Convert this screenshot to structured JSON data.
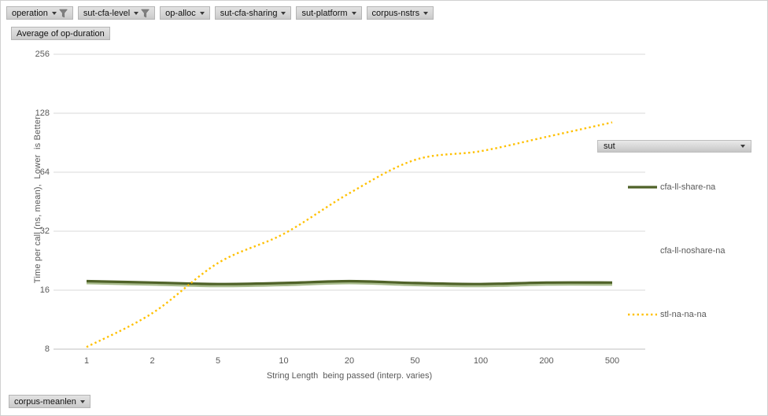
{
  "field_buttons": {
    "top": [
      {
        "label": "operation",
        "filtered": true
      },
      {
        "label": "sut-cfa-level",
        "filtered": true
      },
      {
        "label": "op-alloc",
        "filtered": false
      },
      {
        "label": "sut-cfa-sharing",
        "filtered": false
      },
      {
        "label": "sut-platform",
        "filtered": false
      },
      {
        "label": "corpus-nstrs",
        "filtered": false
      }
    ],
    "values_button": "Average of op-duration",
    "legend_field_button": "sut",
    "bottom_axis_button": "corpus-meanlen"
  },
  "chart_data": {
    "type": "line",
    "title": "",
    "x_axis": {
      "title": "String Length  being passed (interp. varies)",
      "categories": [
        "1",
        "2",
        "5",
        "10",
        "20",
        "50",
        "100",
        "200",
        "500"
      ],
      "scale": "category-log-spaced"
    },
    "y_axis": {
      "title": "Time per call (ns, mean),  Lower  is Better",
      "ticks": [
        256,
        128,
        64,
        32,
        16,
        8
      ],
      "range": [
        8,
        256
      ],
      "scale": "log2"
    },
    "grid": true,
    "legend_position": "right-overlay",
    "series": [
      {
        "name": "cfa-ll-share-na",
        "color": "#4f6228",
        "style": "solid",
        "values": [
          17.8,
          17.5,
          17.2,
          17.4,
          17.8,
          17.4,
          17.2,
          17.5,
          17.5
        ]
      },
      {
        "name": "cfa-ll-noshare-na",
        "color": "#a9bc8d",
        "style": "solid",
        "values": [
          17.4,
          17.1,
          16.8,
          17.0,
          17.4,
          17.0,
          16.8,
          17.1,
          17.1
        ]
      },
      {
        "name": "stl-na-na-na",
        "color": "#ffc000",
        "style": "dotted",
        "values": [
          8.2,
          12.2,
          22,
          31,
          50,
          74,
          82,
          97,
          115
        ]
      }
    ]
  },
  "colors": {
    "gridline": "#d9d9d9",
    "axis_line": "#bfbfbf",
    "axis_text": "#595959",
    "funnel_icon": "#808080"
  }
}
